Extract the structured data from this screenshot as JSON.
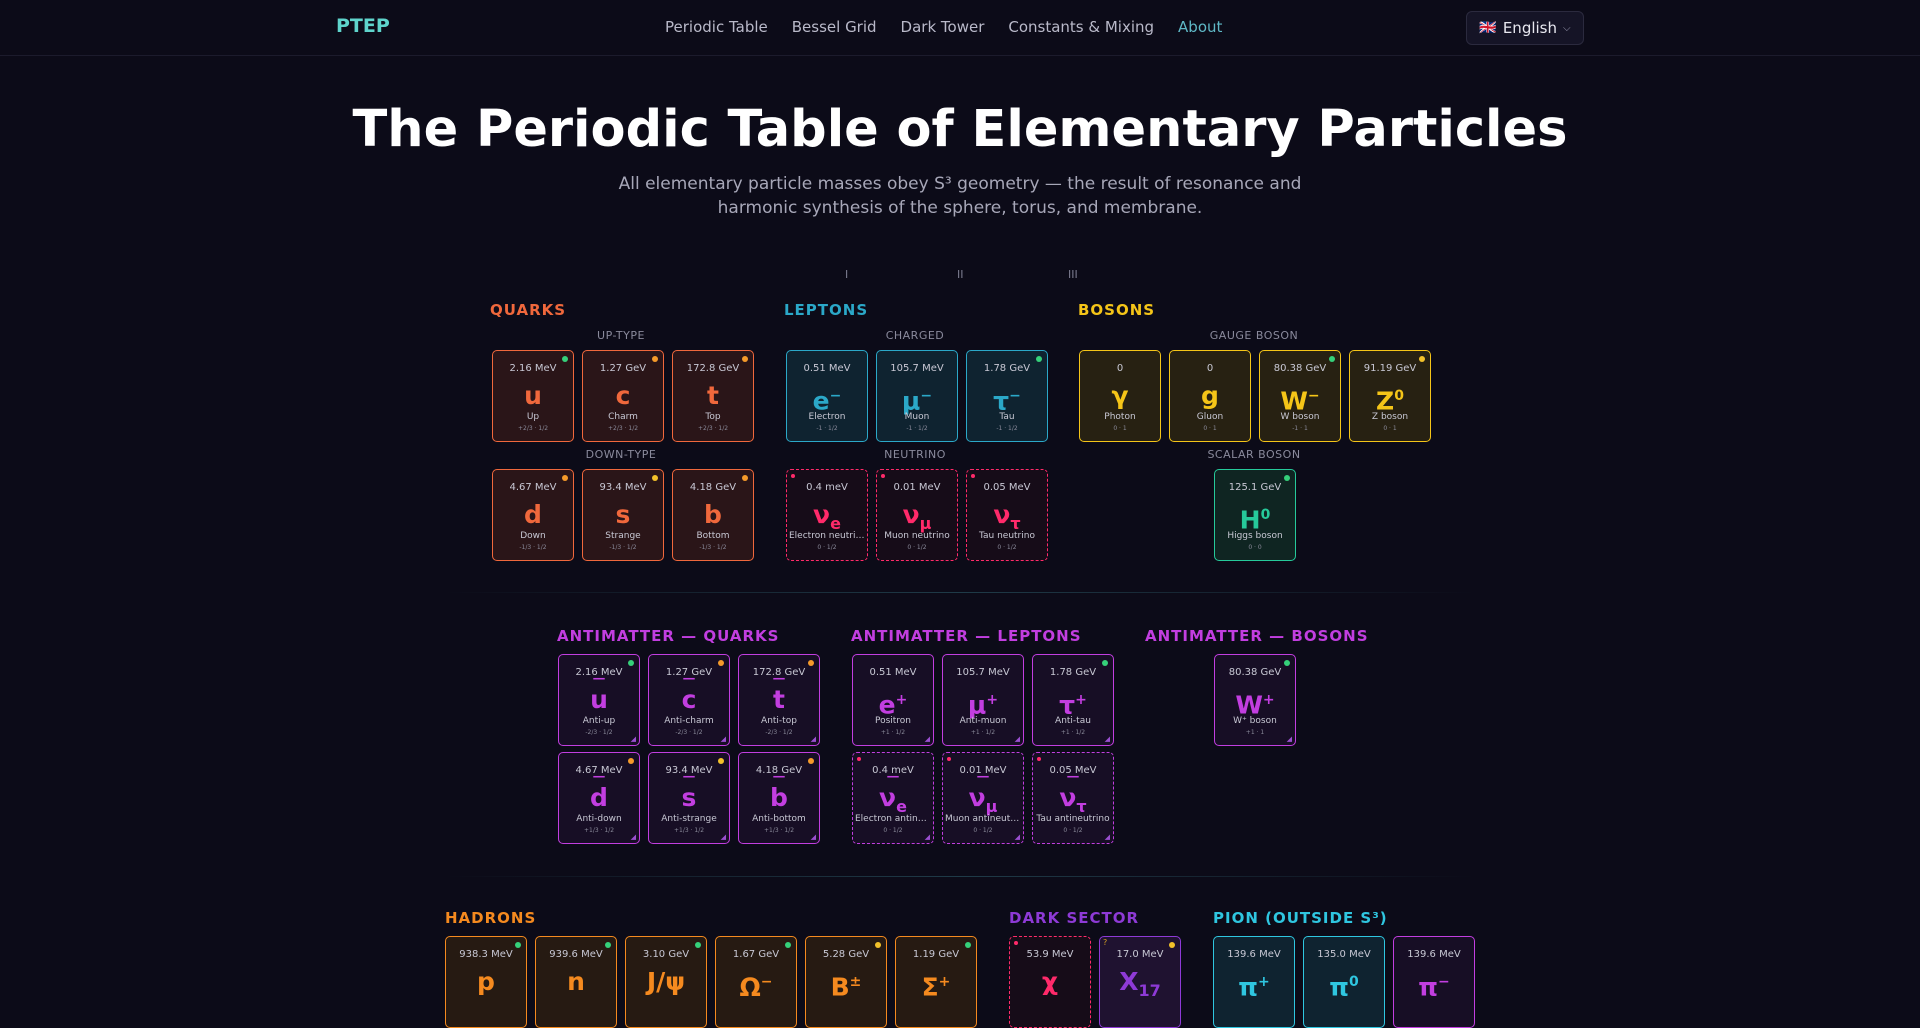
{
  "nav": {
    "logo": "PTEP",
    "links": [
      "Periodic Table",
      "Bessel Grid",
      "Dark Tower",
      "Constants & Mixing",
      "About"
    ],
    "language": "English",
    "language_flag": "🇬🇧"
  },
  "hero": {
    "title": "The Periodic Table of Elementary Particles",
    "subtitle_line1": "All elementary particle masses obey S³ geometry — the result of resonance and",
    "subtitle_line2": "harmonic synthesis of the sphere, torus, and membrane."
  },
  "generations": [
    "I",
    "II",
    "III"
  ],
  "sections": {
    "quarks": "QUARKS",
    "leptons": "LEPTONS",
    "bosons": "BOSONS",
    "up_type": "UP-TYPE",
    "down_type": "DOWN-TYPE",
    "charged": "CHARGED",
    "neutrino": "NEUTRINO",
    "gauge_boson": "GAUGE BOSON",
    "scalar_boson": "SCALAR BOSON",
    "anti_quarks": "ANTIMATTER — QUARKS",
    "anti_leptons": "ANTIMATTER — LEPTONS",
    "anti_bosons": "ANTIMATTER — BOSONS",
    "hadrons": "HADRONS",
    "dark_sector": "DARK SECTOR",
    "pion": "PION (OUTSIDE S³)"
  },
  "colors": {
    "quark": "#f0683c",
    "lepton": "#2ba8c8",
    "neutrino": "#ff2a6a",
    "boson": "#f5c518",
    "higgs": "#26c99a",
    "antimatter": "#c23ee0",
    "hadron": "#f58a1f",
    "dark": "#8e3ad6",
    "pion": "#2fc6e0",
    "dot_green": "#35d07a",
    "dot_orange": "#f59a2a",
    "dot_yellow": "#f2c12a"
  },
  "particles": {
    "u": {
      "mass": "2.16 MeV",
      "symbol": "u",
      "name": "Up",
      "qn": "+2/3 · 1/2"
    },
    "c": {
      "mass": "1.27 GeV",
      "symbol": "c",
      "name": "Charm",
      "qn": "+2/3 · 1/2"
    },
    "t": {
      "mass": "172.8 GeV",
      "symbol": "t",
      "name": "Top",
      "qn": "+2/3 · 1/2"
    },
    "d": {
      "mass": "4.67 MeV",
      "symbol": "d",
      "name": "Down",
      "qn": "-1/3 · 1/2"
    },
    "s": {
      "mass": "93.4 MeV",
      "symbol": "s",
      "name": "Strange",
      "qn": "-1/3 · 1/2"
    },
    "b": {
      "mass": "4.18 GeV",
      "symbol": "b",
      "name": "Bottom",
      "qn": "-1/3 · 1/2"
    },
    "e": {
      "mass": "0.51 MeV",
      "symbol": "e",
      "sup": "−",
      "name": "Electron",
      "qn": "-1 · 1/2"
    },
    "mu": {
      "mass": "105.7 MeV",
      "symbol": "μ",
      "sup": "−",
      "name": "Muon",
      "qn": "-1 · 1/2"
    },
    "tau": {
      "mass": "1.78 GeV",
      "symbol": "τ",
      "sup": "−",
      "name": "Tau",
      "qn": "-1 · 1/2"
    },
    "nue": {
      "mass": "0.4 meV",
      "symbol": "ν",
      "sub": "e",
      "name": "Electron neutrino",
      "qn": "0 · 1/2"
    },
    "numu": {
      "mass": "0.01 MeV",
      "symbol": "ν",
      "sub": "μ",
      "name": "Muon neutrino",
      "qn": "0 · 1/2"
    },
    "nutau": {
      "mass": "0.05 MeV",
      "symbol": "ν",
      "sub": "τ",
      "name": "Tau neutrino",
      "qn": "0 · 1/2"
    },
    "gamma": {
      "mass": "0",
      "symbol": "γ",
      "name": "Photon",
      "qn": "0 · 1"
    },
    "g": {
      "mass": "0",
      "symbol": "g",
      "name": "Gluon",
      "qn": "0 · 1"
    },
    "w": {
      "mass": "80.38 GeV",
      "symbol": "W",
      "sup": "−",
      "name": "W boson",
      "qn": "-1 · 1"
    },
    "z": {
      "mass": "91.19 GeV",
      "symbol": "Z",
      "sup": "0",
      "name": "Z boson",
      "qn": "0 · 1"
    },
    "h": {
      "mass": "125.1 GeV",
      "symbol": "H",
      "sup": "0",
      "name": "Higgs boson",
      "qn": "0 · 0"
    },
    "au": {
      "mass": "2.16 MeV",
      "symbol": "u",
      "name": "Anti-up",
      "qn": "-2/3 · 1/2"
    },
    "ac": {
      "mass": "1.27 GeV",
      "symbol": "c",
      "name": "Anti-charm",
      "qn": "-2/3 · 1/2"
    },
    "at": {
      "mass": "172.8 GeV",
      "symbol": "t",
      "name": "Anti-top",
      "qn": "-2/3 · 1/2"
    },
    "ad": {
      "mass": "4.67 MeV",
      "symbol": "d",
      "name": "Anti-down",
      "qn": "+1/3 · 1/2"
    },
    "as": {
      "mass": "93.4 MeV",
      "symbol": "s",
      "name": "Anti-strange",
      "qn": "+1/3 · 1/2"
    },
    "ab": {
      "mass": "4.18 GeV",
      "symbol": "b",
      "name": "Anti-bottom",
      "qn": "+1/3 · 1/2"
    },
    "ae": {
      "mass": "0.51 MeV",
      "symbol": "e",
      "sup": "+",
      "name": "Positron",
      "qn": "+1 · 1/2"
    },
    "amu": {
      "mass": "105.7 MeV",
      "symbol": "μ",
      "sup": "+",
      "name": "Anti-muon",
      "qn": "+1 · 1/2"
    },
    "atau": {
      "mass": "1.78 GeV",
      "symbol": "τ",
      "sup": "+",
      "name": "Anti-tau",
      "qn": "+1 · 1/2"
    },
    "anue": {
      "mass": "0.4 meV",
      "symbol": "ν",
      "sub": "e",
      "name": "Electron antine...",
      "qn": "0 · 1/2"
    },
    "anumu": {
      "mass": "0.01 MeV",
      "symbol": "ν",
      "sub": "μ",
      "name": "Muon antineutri...",
      "qn": "0 · 1/2"
    },
    "anutau": {
      "mass": "0.05 MeV",
      "symbol": "ν",
      "sub": "τ",
      "name": "Tau antineutrino",
      "qn": "0 · 1/2"
    },
    "awp": {
      "mass": "80.38 GeV",
      "symbol": "W",
      "sup": "+",
      "name": "W⁺ boson",
      "qn": "+1 · 1"
    },
    "p": {
      "mass": "938.3 MeV",
      "symbol": "p"
    },
    "n": {
      "mass": "939.6 MeV",
      "symbol": "n"
    },
    "jpsi": {
      "mass": "3.10 GeV",
      "symbol": "J/ψ"
    },
    "omega": {
      "mass": "1.67 GeV",
      "symbol": "Ω",
      "sup": "−"
    },
    "bpm": {
      "mass": "5.28 GeV",
      "symbol": "B",
      "sup": "±"
    },
    "sigma": {
      "mass": "1.19 GeV",
      "symbol": "Σ",
      "sup": "+"
    },
    "chi": {
      "mass": "53.9 MeV",
      "symbol": "χ"
    },
    "x17": {
      "mass": "17.0 MeV",
      "symbol": "X",
      "sub": "17",
      "qmark": "?"
    },
    "pip": {
      "mass": "139.6 MeV",
      "symbol": "π",
      "sup": "+"
    },
    "pi0": {
      "mass": "135.0 MeV",
      "symbol": "π",
      "sup": "0"
    },
    "pim": {
      "mass": "139.6 MeV",
      "symbol": "π",
      "sup": "−"
    }
  }
}
